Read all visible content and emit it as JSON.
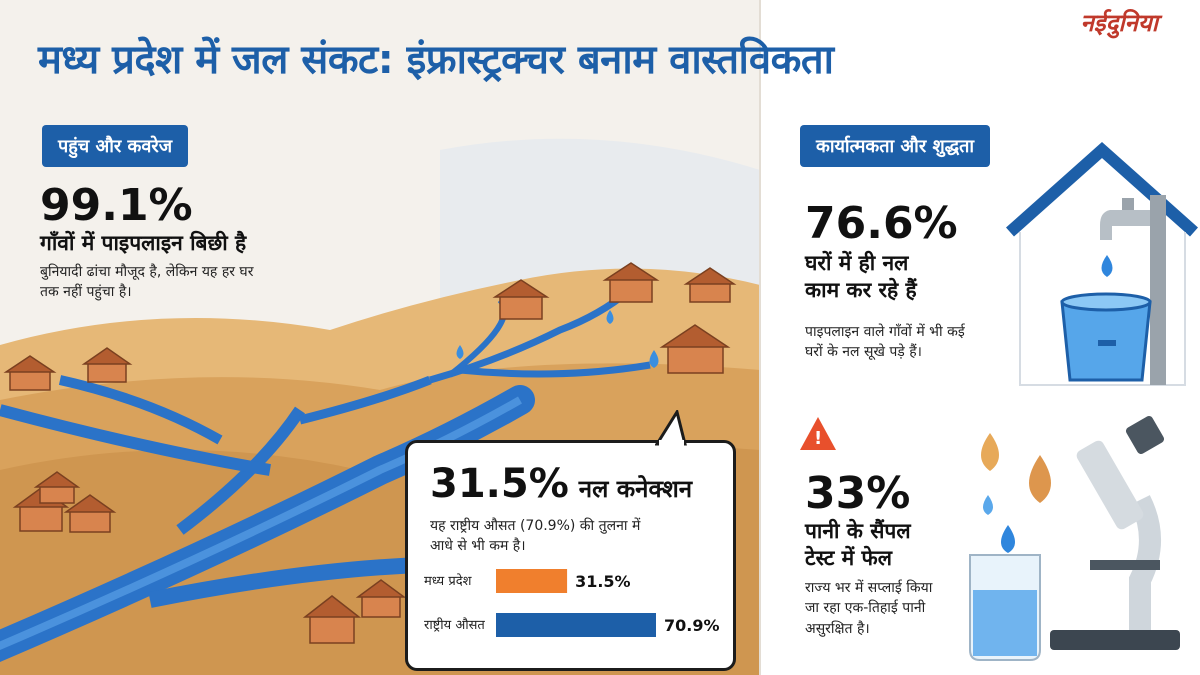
{
  "brand": "नईदुनिया",
  "title": "मध्य प्रदेश में जल संकट: इंफ्रास्ट्रक्चर बनाम वास्तविकता",
  "left": {
    "tag": "पहुंच और कवरेज",
    "stat": "99.1%",
    "subtitle": "गाँवों में पाइपलाइन बिछी है",
    "desc_line1": "बुनियादी ढांचा मौजूद है, लेकिन यह हर घर",
    "desc_line2": "तक नहीं पहुंचा है।"
  },
  "callout": {
    "stat": "31.5%",
    "label": "नल कनेक्शन",
    "desc_line1": "यह राष्ट्रीय औसत (70.9%) की तुलना में",
    "desc_line2": "आधे से भी कम है।",
    "chart_data": {
      "type": "bar",
      "categories": [
        "मध्य प्रदेश",
        "राष्ट्रीय औसत"
      ],
      "values": [
        31.5,
        70.9
      ],
      "value_labels": [
        "31.5%",
        "70.9%"
      ],
      "colors": [
        "#f07f2d",
        "#1d5fa8"
      ]
    }
  },
  "right": {
    "tag": "कार्यात्मकता और शुद्धता",
    "block1": {
      "stat": "76.6%",
      "subtitle_line1": "घरों में ही नल",
      "subtitle_line2": "काम कर रहे हैं",
      "desc_line1": "पाइपलाइन वाले गाँवों में भी कई",
      "desc_line2": "घरों के नल सूखे पड़े हैं।"
    },
    "block2": {
      "stat": "33%",
      "subtitle_line1": "पानी के सैंपल",
      "subtitle_line2": "टेस्ट में फेल",
      "desc_line1": "राज्य भर में सप्लाई किया",
      "desc_line2": "जा रहा एक-तिहाई पानी",
      "desc_line3": "असुरक्षित है।"
    }
  },
  "colors": {
    "accent": "#1d5fa8",
    "orange": "#f07f2d",
    "sand": "#e2b06d",
    "brand": "#c0392b"
  }
}
